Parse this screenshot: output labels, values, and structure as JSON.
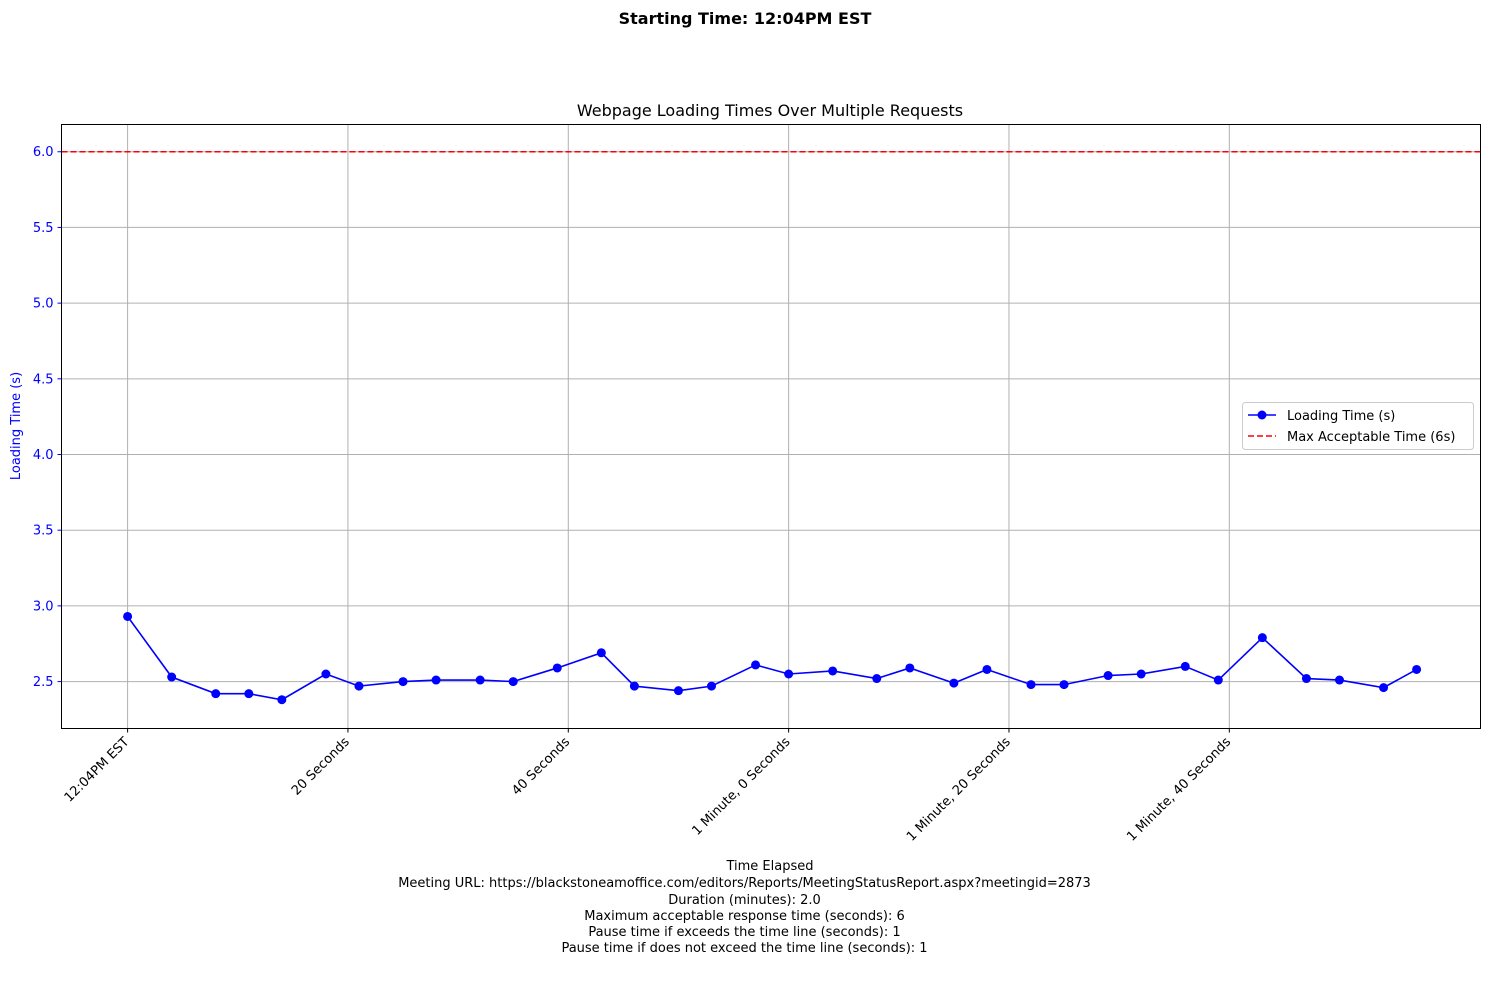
{
  "chart_data": {
    "type": "line",
    "suptitle": "Starting Time: 12:04PM EST",
    "title": "Webpage Loading Times Over Multiple Requests",
    "xlabel": "Time Elapsed",
    "ylabel": "Loading Time (s)",
    "ylim": [
      2.19,
      6.18
    ],
    "xlim": [
      -3,
      61.4
    ],
    "y_ticks": [
      2.5,
      3.0,
      3.5,
      4.0,
      4.5,
      5.0,
      5.5,
      6.0
    ],
    "x_ticks": [
      {
        "x": 0,
        "label": "12:04PM EST"
      },
      {
        "x": 10,
        "label": "20 Seconds"
      },
      {
        "x": 20,
        "label": "40 Seconds"
      },
      {
        "x": 30,
        "label": "1 Minute, 0 Seconds"
      },
      {
        "x": 40,
        "label": "1 Minute, 20 Seconds"
      },
      {
        "x": 50,
        "label": "1 Minute, 40 Seconds"
      }
    ],
    "grid": true,
    "legend_position": "center-right",
    "series": [
      {
        "name": "Loading Time (s)",
        "color": "#0000ff",
        "style": "line-circle",
        "x": [
          0,
          2,
          4,
          5.5,
          7,
          9,
          10.5,
          12.5,
          14,
          16,
          17.5,
          19.5,
          21.5,
          23,
          25,
          26.5,
          28.5,
          30,
          32,
          34,
          35.5,
          37.5,
          39,
          41,
          42.5,
          44.5,
          46,
          48,
          49.5,
          51.5,
          53.5,
          55,
          57,
          58.5
        ],
        "values": [
          2.93,
          2.53,
          2.42,
          2.42,
          2.38,
          2.55,
          2.47,
          2.5,
          2.51,
          2.51,
          2.5,
          2.59,
          2.69,
          2.47,
          2.44,
          2.47,
          2.61,
          2.55,
          2.57,
          2.52,
          2.59,
          2.49,
          2.58,
          2.48,
          2.48,
          2.54,
          2.55,
          2.6,
          2.51,
          2.79,
          2.52,
          2.51,
          2.46,
          2.58
        ]
      }
    ],
    "hlines": [
      {
        "name": "Max Acceptable Time (6s)",
        "y": 6.0,
        "color": "#ff0000",
        "style": "dashed"
      }
    ],
    "footer": [
      "Meeting URL: https://blackstoneamoffice.com/editors/Reports/MeetingStatusReport.aspx?meetingid=2873",
      "Duration (minutes): 2.0",
      "Maximum acceptable response time (seconds): 6",
      "Pause time if exceeds the time line (seconds): 1",
      "Pause time if does not exceed the time line (seconds): 1"
    ]
  }
}
